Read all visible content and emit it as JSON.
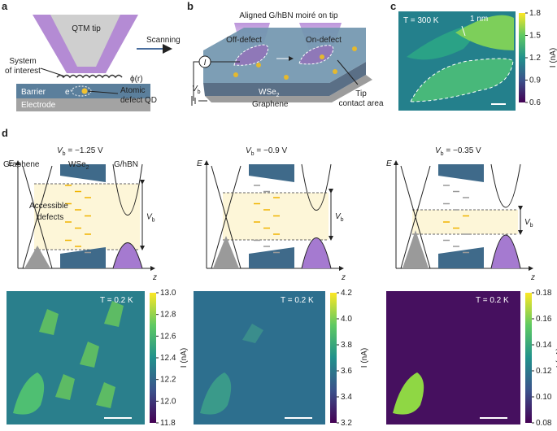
{
  "panel_labels": [
    "a",
    "b",
    "c",
    "d"
  ],
  "panel_a": {
    "tip": "QTM tip",
    "scanning": "Scanning",
    "system": [
      "System",
      "of interest"
    ],
    "phi": "ϕ(r)",
    "barrier": "Barrier",
    "electron": "e⁻",
    "defect": [
      "Atomic",
      "defect QD"
    ],
    "electrode": "Electrode"
  },
  "panel_b": {
    "title": "Aligned G/hBN moiré on tip",
    "off": "Off-defect",
    "on": "On-defect",
    "current": "I",
    "bias": {
      "symbol": "V",
      "sub": "b"
    },
    "wse2": {
      "text": "WSe",
      "sub": "2"
    },
    "graphene": "Graphene",
    "contact": [
      "Tip",
      "contact area"
    ]
  },
  "panel_c": {
    "temperature": "T = 300 K",
    "scale": "1 nm",
    "colorbar_label": "I (nA)",
    "colorbar_ticks": [
      "0.6",
      "0.9",
      "1.2",
      "1.5",
      "1.8"
    ]
  },
  "panel_d": {
    "materials": {
      "graphene": "Graphene",
      "wse2": {
        "text": "WSe",
        "sub": "2"
      },
      "ghbn": "G/hBN"
    },
    "accessible": [
      "Accessible",
      "defects"
    ],
    "columns": [
      {
        "bias": {
          "symbol": "V",
          "sub": "b",
          "value": " = −1.25 V"
        },
        "energy_axis": "E",
        "z_axis": "z",
        "window_label": {
          "symbol": "V",
          "sub": "b"
        },
        "image": {
          "temperature": "T = 0.2 K",
          "colorbar_label": "I (nA)",
          "colorbar_ticks": [
            "11.8",
            "12.0",
            "12.2",
            "12.4",
            "12.6",
            "12.8",
            "13.0"
          ]
        }
      },
      {
        "bias": {
          "symbol": "V",
          "sub": "b",
          "value": " = −0.9 V"
        },
        "energy_axis": "E",
        "z_axis": "z",
        "window_label": {
          "symbol": "V",
          "sub": "b"
        },
        "image": {
          "temperature": "T = 0.2 K",
          "colorbar_label": "I (nA)",
          "colorbar_ticks": [
            "3.2",
            "3.4",
            "3.6",
            "3.8",
            "4.0",
            "4.2"
          ]
        }
      },
      {
        "bias": {
          "symbol": "V",
          "sub": "b",
          "value": " = −0.35 V"
        },
        "energy_axis": "E",
        "z_axis": "z",
        "window_label": {
          "symbol": "V",
          "sub": "b"
        },
        "image": {
          "temperature": "T = 0.2 K",
          "colorbar_label": "I (nA)",
          "colorbar_ticks": [
            "0.08",
            "0.10",
            "0.12",
            "0.14",
            "0.16",
            "0.18"
          ]
        }
      }
    ]
  }
}
